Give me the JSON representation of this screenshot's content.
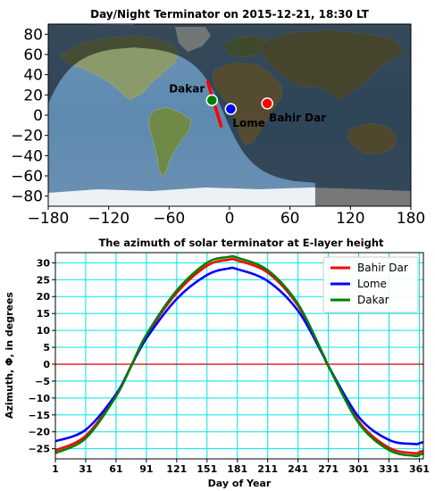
{
  "chart_data": [
    {
      "type": "map",
      "title": "Day/Night Terminator on 2015-12-21, 18:30 LT",
      "xlim": [
        -180,
        180
      ],
      "ylim": [
        -90,
        90
      ],
      "xticks": [
        "−180",
        "−120",
        "−60",
        "0",
        "60",
        "120",
        "180"
      ],
      "xtick_values": [
        -180,
        -120,
        -60,
        0,
        60,
        120,
        180
      ],
      "yticks": [
        "80",
        "60",
        "40",
        "20",
        "0",
        "−20",
        "−40",
        "−60",
        "−80"
      ],
      "ytick_values": [
        80,
        60,
        40,
        20,
        0,
        -20,
        -40,
        -60,
        -80
      ],
      "night_side": "east",
      "terminator_segment": {
        "color": "#ff0000",
        "start": [
          -8,
          -12
        ],
        "end": [
          -22,
          34
        ]
      },
      "cities": [
        {
          "name": "Dakar",
          "lon": -17.5,
          "lat": 14.7,
          "color": "#008000",
          "label_side": "upper-left"
        },
        {
          "name": "Lome",
          "lon": 1.2,
          "lat": 6.1,
          "color": "#0000ff",
          "label_side": "lower-right"
        },
        {
          "name": "Bahir Dar",
          "lon": 37.4,
          "lat": 11.6,
          "color": "#ff0000",
          "label_side": "lower-right"
        }
      ]
    },
    {
      "type": "line",
      "title": "The azimuth of solar terminator at E-layer height",
      "xlabel": "Day of Year",
      "ylabel": "Azimuth, Φ,  in degrees",
      "xlim": [
        1,
        365
      ],
      "ylim": [
        -28,
        33
      ],
      "xticks": [
        1,
        31,
        61,
        91,
        121,
        151,
        181,
        211,
        241,
        271,
        301,
        331,
        361
      ],
      "yticks": [
        30,
        25,
        20,
        15,
        10,
        5,
        0,
        -5,
        -10,
        -15,
        -20,
        -25
      ],
      "grid": true,
      "grid_color": "#00e5e5",
      "zero_line_color": "#cc0000",
      "legend": "top-right",
      "x": [
        1,
        31,
        61,
        76,
        91,
        121,
        151,
        172,
        181,
        211,
        241,
        266,
        271,
        301,
        331,
        356,
        361,
        365
      ],
      "series": [
        {
          "name": "Bahir Dar",
          "color": "#ff0000",
          "values": [
            -25.5,
            -21.2,
            -9.3,
            -0.5,
            8.4,
            21.1,
            29.1,
            30.9,
            30.7,
            27.1,
            17.3,
            2.7,
            -0.5,
            -16.9,
            -24.7,
            -26.3,
            -26.0,
            -25.6
          ]
        },
        {
          "name": "Lome",
          "color": "#0000ff",
          "values": [
            -22.8,
            -19.4,
            -8.9,
            -0.5,
            7.6,
            19.3,
            26.4,
            28.3,
            28.1,
            24.6,
            15.8,
            2.5,
            -0.5,
            -15.6,
            -22.4,
            -23.6,
            -23.4,
            -23.0
          ]
        },
        {
          "name": "Dakar",
          "color": "#008000",
          "values": [
            -26.3,
            -21.9,
            -9.5,
            -0.5,
            8.7,
            21.8,
            30.0,
            31.7,
            31.5,
            27.8,
            17.8,
            2.8,
            -0.5,
            -17.4,
            -25.4,
            -27.1,
            -26.8,
            -26.4
          ]
        }
      ]
    }
  ]
}
